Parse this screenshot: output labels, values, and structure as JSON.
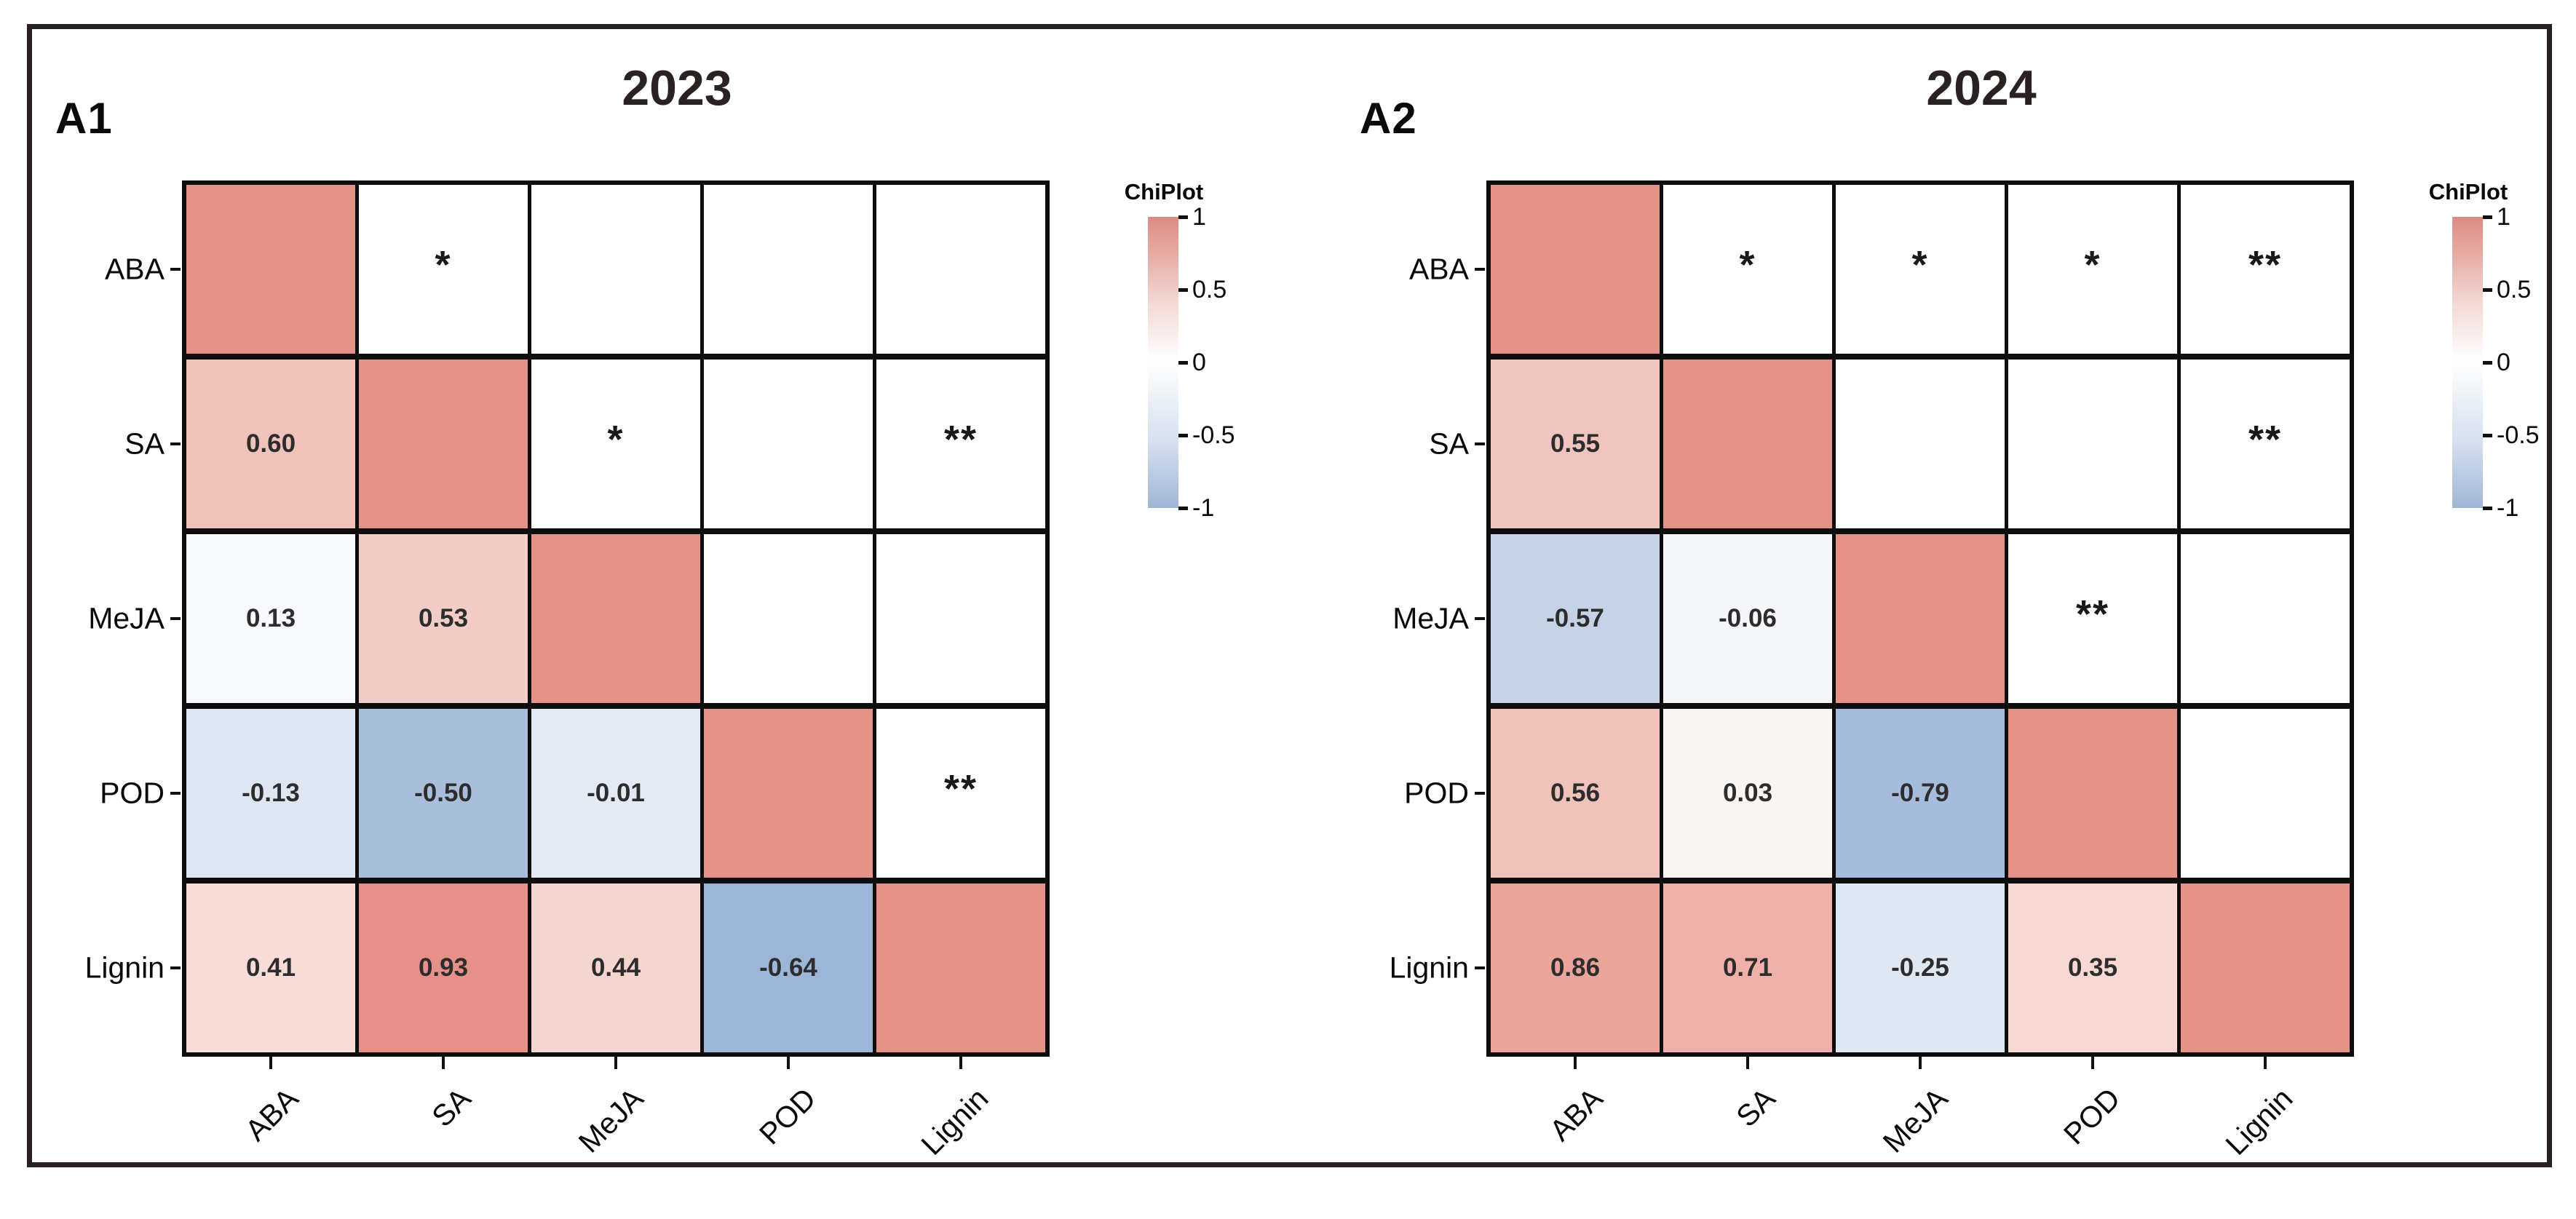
{
  "figure": {
    "description_note": "Two correlation heatmap panels with significance stars and ChiPlot colorbars"
  },
  "chart_data": [
    {
      "type": "heatmap",
      "panel_label": "A1",
      "title": "2023",
      "variables": [
        "ABA",
        "SA",
        "MeJA",
        "POD",
        "Lignin"
      ],
      "correlations": [
        [
          1,
          null,
          null,
          null,
          null
        ],
        [
          0.6,
          1,
          null,
          null,
          null
        ],
        [
          0.13,
          0.53,
          1,
          null,
          null
        ],
        [
          -0.13,
          -0.5,
          -0.01,
          1,
          null
        ],
        [
          0.41,
          0.93,
          0.44,
          -0.64,
          1
        ]
      ],
      "significance": [
        [
          "",
          "*",
          "",
          "",
          ""
        ],
        [
          "",
          "",
          "*",
          "",
          "**"
        ],
        [
          "",
          "",
          "",
          "",
          ""
        ],
        [
          "",
          "",
          "",
          "",
          "**"
        ],
        [
          "",
          "",
          "",
          "",
          ""
        ]
      ],
      "cell_colors": [
        [
          "#e59289",
          null,
          null,
          null,
          null
        ],
        [
          "#f0c2bc",
          "#e59289",
          null,
          null,
          null
        ],
        [
          "#f7f9fc",
          "#f2cdc8",
          "#e59289",
          null,
          null
        ],
        [
          "#dee6f1",
          "#a9bedb",
          "#e3eaf4",
          "#e59289",
          null
        ],
        [
          "#f8dcd7",
          "#e69089",
          "#f5d5d0",
          "#9db6d8",
          "#e59289"
        ]
      ],
      "colorbar": {
        "title": "ChiPlot",
        "tick_labels": [
          "1",
          "0.5",
          "0",
          "-0.5",
          "-1"
        ],
        "range": [
          1,
          -1
        ],
        "top_color": "#dc8a82",
        "middle_color": "#ffffff",
        "bottom_color": "#a0b6d6"
      },
      "axis": {
        "x_labels_rotation_deg": -45,
        "grid_lines": "black"
      }
    },
    {
      "type": "heatmap",
      "panel_label": "A2",
      "title": "2024",
      "variables": [
        "ABA",
        "SA",
        "MeJA",
        "POD",
        "Lignin"
      ],
      "correlations": [
        [
          1,
          null,
          null,
          null,
          null
        ],
        [
          0.55,
          1,
          null,
          null,
          null
        ],
        [
          -0.57,
          -0.06,
          1,
          null,
          null
        ],
        [
          0.56,
          0.03,
          -0.79,
          1,
          null
        ],
        [
          0.86,
          0.71,
          -0.25,
          0.35,
          1
        ]
      ],
      "significance": [
        [
          "",
          "*",
          "*",
          "*",
          "**"
        ],
        [
          "",
          "",
          "",
          "",
          "**"
        ],
        [
          "",
          "",
          "",
          "**",
          ""
        ],
        [
          "",
          "",
          "",
          "",
          ""
        ],
        [
          "",
          "",
          "",
          "",
          ""
        ]
      ],
      "cell_colors": [
        [
          "#e59289",
          null,
          null,
          null,
          null
        ],
        [
          "#f1c5bf",
          "#e59289",
          null,
          null,
          null
        ],
        [
          "#c6d2e5",
          "#f5f7fb",
          "#e59289",
          null,
          null
        ],
        [
          "#f0c2bc",
          "#faf6f3",
          "#a7bcdc",
          "#e59289",
          null
        ],
        [
          "#eba49a",
          "#efb1a9",
          "#dfe8f2",
          "#f8d8d3",
          "#e59289"
        ]
      ],
      "colorbar": {
        "title": "ChiPlot",
        "tick_labels": [
          "1",
          "0.5",
          "0",
          "-0.5",
          "-1"
        ],
        "range": [
          1,
          -1
        ],
        "top_color": "#dc8a82",
        "middle_color": "#ffffff",
        "bottom_color": "#a0b6d6"
      },
      "axis": {
        "x_labels_rotation_deg": -45,
        "grid_lines": "black"
      }
    }
  ]
}
